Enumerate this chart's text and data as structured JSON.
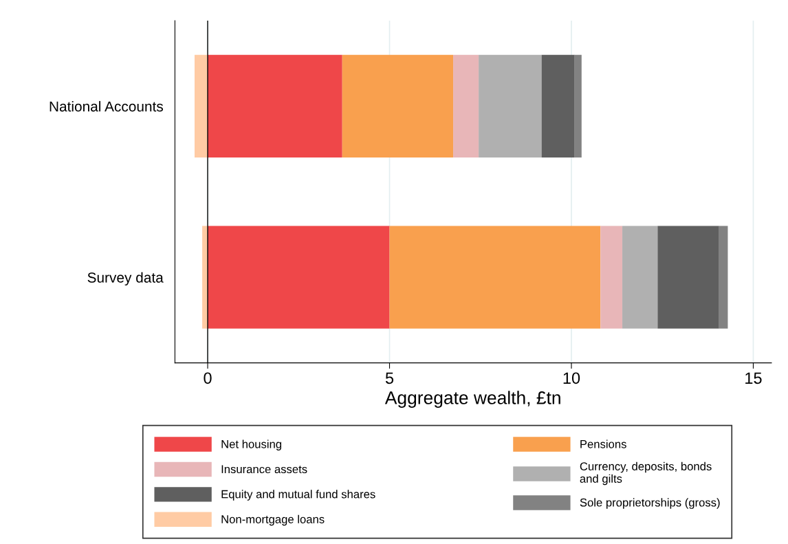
{
  "chart_data": {
    "type": "bar",
    "orientation": "horizontal",
    "stacked": true,
    "categories": [
      "National Accounts",
      "Survey data"
    ],
    "series": [
      {
        "name": "Net housing",
        "color": "#ef4749",
        "values": [
          3.7,
          5.0
        ]
      },
      {
        "name": "Pensions",
        "color": "#f9a04e",
        "values": [
          3.05,
          5.8
        ]
      },
      {
        "name": "Insurance assets",
        "color": "#e8b6b8",
        "values": [
          0.7,
          0.6
        ]
      },
      {
        "name": "Currency, deposits, bonds\nand gilts",
        "color": "#b0b0b0",
        "values": [
          1.73,
          0.97
        ]
      },
      {
        "name": "Equity and mutual fund shares",
        "color": "#5f5f5f",
        "values": [
          0.91,
          1.69
        ]
      },
      {
        "name": "Sole proprietorships (gross)",
        "color": "#828282",
        "values": [
          0.19,
          0.24
        ]
      },
      {
        "name": "Non-mortgage loans",
        "color": "#ffcba4",
        "values": [
          -0.36,
          -0.15
        ]
      }
    ],
    "xlabel": "Aggregate wealth, £tn",
    "xlim": [
      -0.9,
      15.5
    ],
    "xticks": [
      0,
      5,
      10,
      15
    ],
    "grid": "x",
    "legend": "bottom",
    "ref_lines": [
      {
        "axis": "x",
        "value": 0,
        "color": "#000000"
      }
    ]
  }
}
